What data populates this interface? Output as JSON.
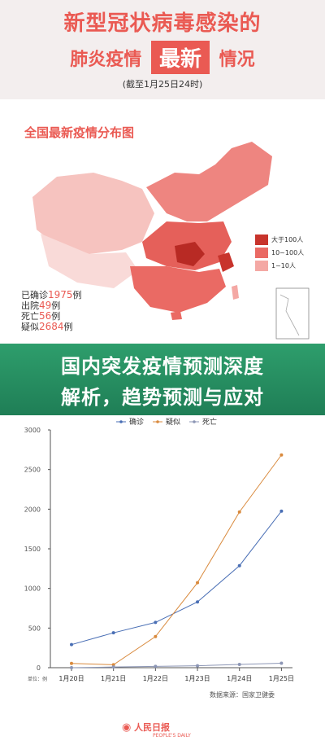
{
  "header": {
    "title_line1": "新型冠状病毒感染的",
    "title_line2_left": "肺炎疫情",
    "title_line2_highlight": "最新",
    "title_line2_right": "情况",
    "deadline": "(截至1月25日24时)"
  },
  "map": {
    "title": "全国最新疫情分布图",
    "stats": [
      {
        "prefix": "已确诊",
        "value": "1975",
        "suffix": "例"
      },
      {
        "prefix": "出院",
        "value": "49",
        "suffix": "例"
      },
      {
        "prefix": "死亡",
        "value": "56",
        "suffix": "例"
      },
      {
        "prefix": "疑似",
        "value": "2684",
        "suffix": "例"
      }
    ],
    "legend": [
      {
        "label": "大于100人",
        "color": "#c8342c"
      },
      {
        "label": "10~100人",
        "color": "#ea6a64"
      },
      {
        "label": "1~10人",
        "color": "#f4a8a4"
      }
    ]
  },
  "overlay": {
    "line1": "国内突发疫情预测深度",
    "line2": "解析，趋势预测与应对"
  },
  "chart_data": {
    "type": "line",
    "categories": [
      "1月20日",
      "1月21日",
      "1月22日",
      "1月23日",
      "1月24日",
      "1月25日"
    ],
    "series": [
      {
        "name": "确诊",
        "values": [
          291,
          440,
          571,
          830,
          1287,
          1975
        ],
        "color": "#4a6fb5"
      },
      {
        "name": "疑似",
        "values": [
          54,
          37,
          393,
          1072,
          1965,
          2684
        ],
        "color": "#d98a3d"
      },
      {
        "name": "死亡",
        "values": [
          0,
          9,
          17,
          25,
          41,
          56
        ],
        "color": "#8c96b5"
      }
    ],
    "ylim": [
      0,
      3000
    ],
    "yticks": [
      0,
      500,
      1000,
      1500,
      2000,
      2500,
      3000
    ],
    "unit_label": "单位：例",
    "source": "数据来源：国家卫健委",
    "legend_position": "top"
  },
  "footer": {
    "logo_text": "人民日报",
    "logo_sub": "PEOPLE'S DAILY"
  }
}
